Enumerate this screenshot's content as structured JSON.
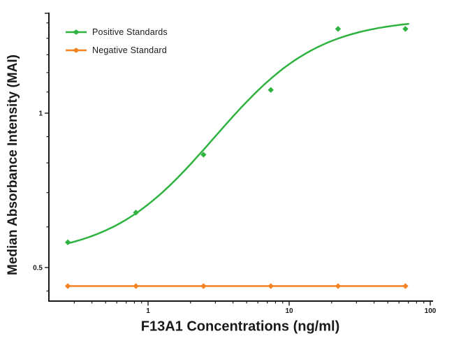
{
  "figure": {
    "background": "#ffffff",
    "axis_color": "#1a1a1a",
    "text_color": "#1a1a1a"
  },
  "chart_data": {
    "type": "line",
    "title": "",
    "xlabel": "F13A1 Concentrations (ng/ml)",
    "ylabel": "Median Absorbance Intensity (MAI)",
    "x_scale": "log",
    "y_scale": "log",
    "xlim": [
      0.2,
      100
    ],
    "ylim": [
      0.43,
      1.58
    ],
    "grid": false,
    "legend_position": "upper-left-inside",
    "x_major_ticks": [
      {
        "value": 1,
        "label": "1"
      },
      {
        "value": 10,
        "label": "10"
      },
      {
        "value": 100,
        "label": "100"
      }
    ],
    "x_minor_ticks": [
      0.3,
      0.4,
      0.5,
      0.6,
      0.7,
      0.8,
      0.9,
      2,
      3,
      4,
      5,
      6,
      7,
      8,
      9,
      20,
      30,
      40,
      50,
      60,
      70,
      80,
      90
    ],
    "y_major_ticks": [
      {
        "value": 1,
        "label": "1"
      },
      {
        "value": 0.5,
        "label": "0.5"
      }
    ],
    "y_minor_ticks": [
      1.5,
      1.4,
      1.3,
      1.2,
      1.1,
      0.9,
      0.8,
      0.7,
      0.6,
      0.45
    ],
    "series": [
      {
        "name": "Positive Standards",
        "color": "#2eb240",
        "marker": "diamond",
        "line_style": "sigmoid-fit",
        "x": [
          0.27,
          0.82,
          2.47,
          7.41,
          22.2,
          66.7
        ],
        "y": [
          0.56,
          0.64,
          0.83,
          1.11,
          1.46,
          1.46
        ],
        "fit_4pl": {
          "bottom": 0.525,
          "top": 1.53,
          "ec50": 4.6,
          "hill": 1.2,
          "x_start": 0.27,
          "x_end": 70
        }
      },
      {
        "name": "Negative Standard",
        "color": "#f58223",
        "marker": "diamond",
        "line_style": "straight",
        "x": [
          0.27,
          0.82,
          2.47,
          7.41,
          22.2,
          66.7
        ],
        "y": [
          0.46,
          0.46,
          0.46,
          0.46,
          0.46,
          0.46
        ]
      }
    ]
  }
}
